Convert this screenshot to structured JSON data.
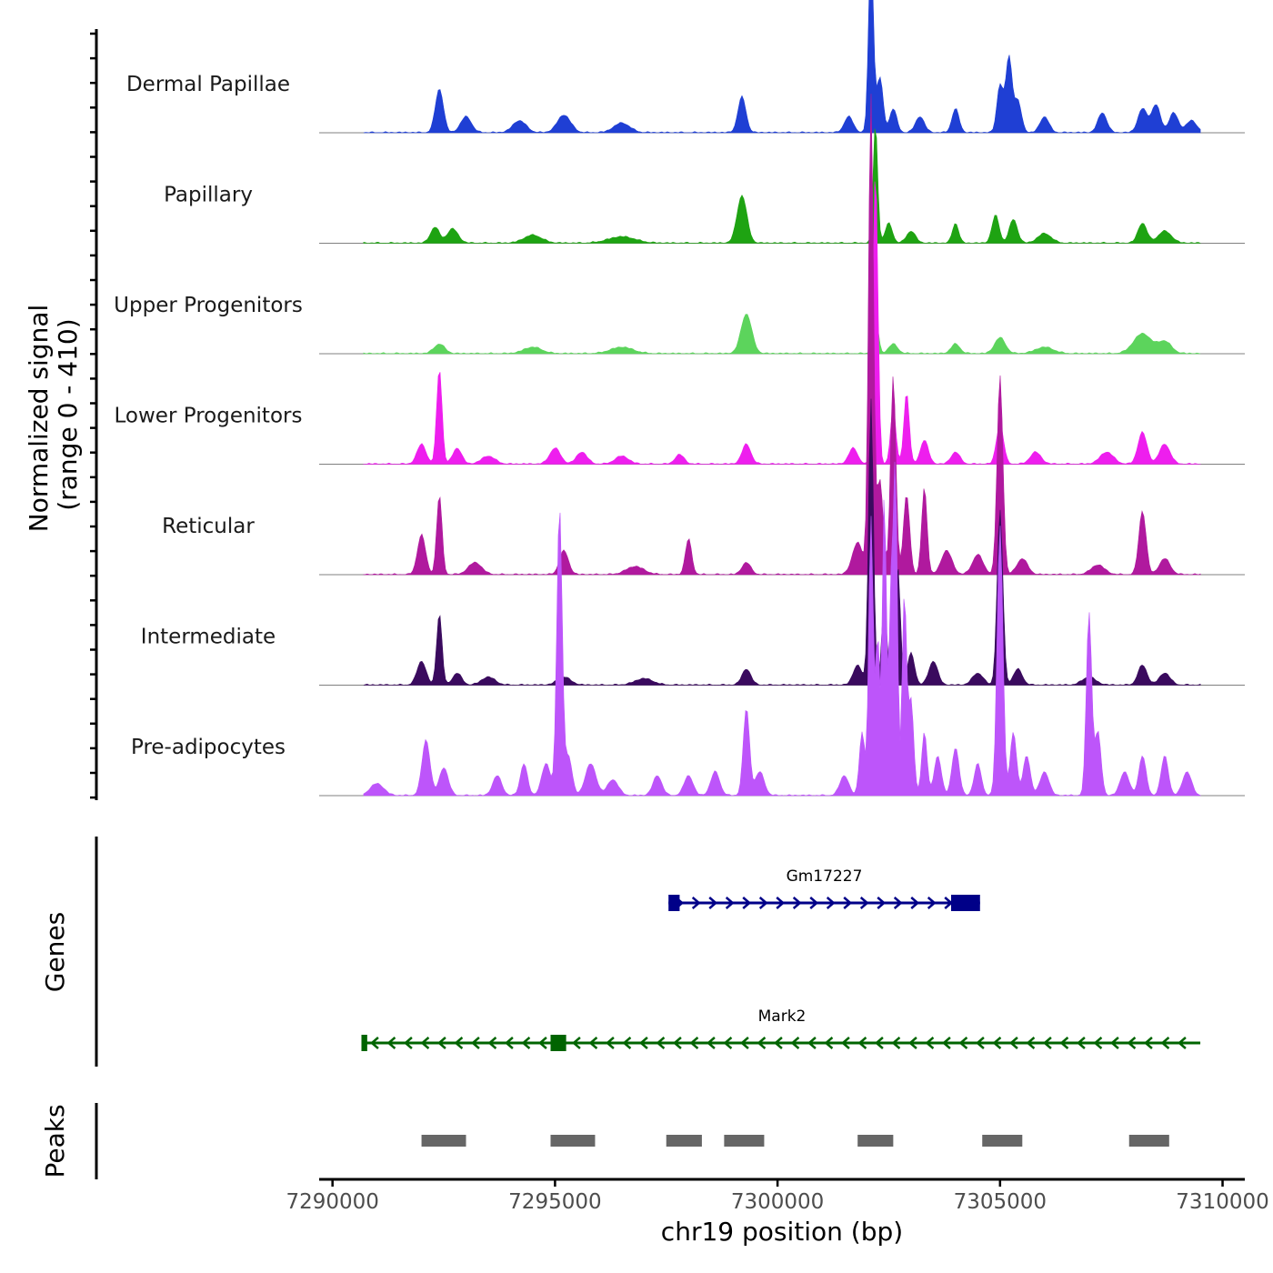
{
  "chart_data": {
    "type": "area",
    "ylabel_line1": "Normalized signal",
    "ylabel_line2": "(range 0 - 410)",
    "xlabel": "chr19 position (bp)",
    "xlim": [
      7289700,
      7310500
    ],
    "ylim": [
      0,
      410
    ],
    "x_ticks": [
      7290000,
      7295000,
      7300000,
      7305000,
      7310000
    ],
    "x_tick_labels": [
      "7290000",
      "7295000",
      "7300000",
      "7305000",
      "7310000"
    ],
    "track_range": [
      7290700,
      7309500
    ],
    "tracks": [
      {
        "name": "Dermal Papillae",
        "color": "#1f3fd4",
        "peaks": [
          [
            7292400,
            55,
            90
          ],
          [
            7293000,
            20,
            120
          ],
          [
            7294200,
            15,
            150
          ],
          [
            7295200,
            22,
            150
          ],
          [
            7296500,
            12,
            180
          ],
          [
            7299200,
            45,
            90
          ],
          [
            7301600,
            20,
            100
          ],
          [
            7302100,
            230,
            55
          ],
          [
            7302300,
            70,
            70
          ],
          [
            7302600,
            30,
            80
          ],
          [
            7303200,
            20,
            100
          ],
          [
            7304000,
            30,
            80
          ],
          [
            7305000,
            60,
            70
          ],
          [
            7305200,
            95,
            70
          ],
          [
            7305400,
            40,
            80
          ],
          [
            7306000,
            20,
            100
          ],
          [
            7307300,
            25,
            100
          ],
          [
            7308200,
            30,
            100
          ],
          [
            7308500,
            35,
            100
          ],
          [
            7308900,
            25,
            100
          ],
          [
            7309300,
            15,
            120
          ]
        ]
      },
      {
        "name": "Papillary",
        "color": "#1ea312",
        "peaks": [
          [
            7292300,
            20,
            100
          ],
          [
            7292700,
            18,
            120
          ],
          [
            7294500,
            10,
            200
          ],
          [
            7296500,
            8,
            300
          ],
          [
            7299200,
            60,
            110
          ],
          [
            7302200,
            150,
            50
          ],
          [
            7302500,
            25,
            80
          ],
          [
            7303000,
            15,
            100
          ],
          [
            7304000,
            25,
            70
          ],
          [
            7304900,
            35,
            80
          ],
          [
            7305300,
            30,
            90
          ],
          [
            7306000,
            12,
            150
          ],
          [
            7308200,
            25,
            100
          ],
          [
            7308700,
            15,
            150
          ]
        ]
      },
      {
        "name": "Upper Progenitors",
        "color": "#5cd45c",
        "peaks": [
          [
            7292400,
            12,
            120
          ],
          [
            7294500,
            8,
            200
          ],
          [
            7296500,
            8,
            250
          ],
          [
            7299300,
            50,
            120
          ],
          [
            7302200,
            50,
            60
          ],
          [
            7302600,
            12,
            100
          ],
          [
            7304000,
            12,
            100
          ],
          [
            7305000,
            20,
            120
          ],
          [
            7306000,
            8,
            200
          ],
          [
            7308200,
            25,
            200
          ],
          [
            7308700,
            15,
            150
          ]
        ]
      },
      {
        "name": "Lower Progenitors",
        "color": "#ee1eee",
        "peaks": [
          [
            7292000,
            25,
            100
          ],
          [
            7292400,
            120,
            60
          ],
          [
            7292800,
            20,
            100
          ],
          [
            7293500,
            10,
            150
          ],
          [
            7295000,
            20,
            120
          ],
          [
            7295600,
            15,
            120
          ],
          [
            7296500,
            10,
            150
          ],
          [
            7297800,
            12,
            100
          ],
          [
            7299300,
            25,
            100
          ],
          [
            7301700,
            20,
            100
          ],
          [
            7302200,
            370,
            55
          ],
          [
            7302600,
            70,
            60
          ],
          [
            7302900,
            90,
            60
          ],
          [
            7303300,
            30,
            90
          ],
          [
            7304000,
            15,
            100
          ],
          [
            7305000,
            50,
            80
          ],
          [
            7305800,
            15,
            120
          ],
          [
            7307400,
            15,
            150
          ],
          [
            7308200,
            40,
            100
          ],
          [
            7308700,
            25,
            120
          ]
        ]
      },
      {
        "name": "Reticular",
        "color": "#b0199e",
        "peaks": [
          [
            7292000,
            50,
            90
          ],
          [
            7292400,
            100,
            60
          ],
          [
            7293200,
            15,
            150
          ],
          [
            7295200,
            30,
            100
          ],
          [
            7296800,
            10,
            200
          ],
          [
            7298000,
            45,
            70
          ],
          [
            7299300,
            15,
            100
          ],
          [
            7301800,
            40,
            120
          ],
          [
            7302100,
            600,
            55
          ],
          [
            7302300,
            120,
            70
          ],
          [
            7302600,
            250,
            60
          ],
          [
            7302900,
            100,
            70
          ],
          [
            7303300,
            110,
            60
          ],
          [
            7303800,
            30,
            120
          ],
          [
            7304500,
            25,
            120
          ],
          [
            7305000,
            250,
            65
          ],
          [
            7305500,
            20,
            120
          ],
          [
            7307200,
            12,
            150
          ],
          [
            7308200,
            80,
            80
          ],
          [
            7308700,
            20,
            120
          ]
        ]
      },
      {
        "name": "Intermediate",
        "color": "#3a0a5e",
        "peaks": [
          [
            7292000,
            30,
            100
          ],
          [
            7292400,
            90,
            60
          ],
          [
            7292800,
            15,
            100
          ],
          [
            7293500,
            10,
            150
          ],
          [
            7295200,
            10,
            150
          ],
          [
            7297000,
            8,
            200
          ],
          [
            7299300,
            20,
            100
          ],
          [
            7301800,
            25,
            100
          ],
          [
            7302100,
            360,
            55
          ],
          [
            7302400,
            100,
            60
          ],
          [
            7302700,
            150,
            60
          ],
          [
            7303000,
            40,
            80
          ],
          [
            7303500,
            30,
            100
          ],
          [
            7304500,
            15,
            120
          ],
          [
            7305000,
            220,
            65
          ],
          [
            7305400,
            20,
            100
          ],
          [
            7307000,
            10,
            150
          ],
          [
            7308200,
            25,
            100
          ],
          [
            7308700,
            15,
            120
          ]
        ]
      },
      {
        "name": "Pre-adipocytes",
        "color": "#bd55fa",
        "peaks": [
          [
            7291000,
            15,
            150
          ],
          [
            7292100,
            70,
            90
          ],
          [
            7292500,
            35,
            100
          ],
          [
            7293700,
            25,
            100
          ],
          [
            7294300,
            40,
            80
          ],
          [
            7294800,
            40,
            100
          ],
          [
            7295100,
            360,
            60
          ],
          [
            7295300,
            50,
            80
          ],
          [
            7295800,
            40,
            120
          ],
          [
            7296300,
            20,
            120
          ],
          [
            7297300,
            25,
            100
          ],
          [
            7298000,
            25,
            100
          ],
          [
            7298600,
            30,
            100
          ],
          [
            7299300,
            110,
            70
          ],
          [
            7299600,
            30,
            100
          ],
          [
            7301500,
            25,
            100
          ],
          [
            7301900,
            80,
            60
          ],
          [
            7302100,
            350,
            50
          ],
          [
            7302250,
            200,
            45
          ],
          [
            7302400,
            380,
            45
          ],
          [
            7302550,
            250,
            45
          ],
          [
            7302650,
            400,
            45
          ],
          [
            7302850,
            250,
            50
          ],
          [
            7303000,
            120,
            60
          ],
          [
            7303300,
            80,
            60
          ],
          [
            7303600,
            50,
            80
          ],
          [
            7304000,
            60,
            80
          ],
          [
            7304500,
            40,
            80
          ],
          [
            7305000,
            340,
            65
          ],
          [
            7305300,
            80,
            70
          ],
          [
            7305600,
            50,
            80
          ],
          [
            7306000,
            30,
            100
          ],
          [
            7307000,
            230,
            60
          ],
          [
            7307200,
            80,
            70
          ],
          [
            7307800,
            30,
            100
          ],
          [
            7308200,
            50,
            80
          ],
          [
            7308700,
            50,
            80
          ],
          [
            7309200,
            30,
            100
          ]
        ]
      }
    ],
    "genes": [
      {
        "name": "Gm17227",
        "color": "#000088",
        "strand": "+",
        "start": 7297550,
        "end": 7304550,
        "exons": [
          [
            7297550,
            7297800
          ],
          [
            7303900,
            7304550
          ]
        ]
      },
      {
        "name": "Mark2",
        "color": "#006400",
        "strand": "-",
        "start": 7290700,
        "end": 7309500,
        "exons": [
          [
            7290650,
            7290780
          ],
          [
            7294900,
            7295250
          ]
        ]
      }
    ],
    "genes_label": "Genes",
    "peaks_label": "Peaks",
    "peak_regions": [
      [
        7292000,
        7293000
      ],
      [
        7294900,
        7295900
      ],
      [
        7297500,
        7298300
      ],
      [
        7298800,
        7299700
      ],
      [
        7301800,
        7302600
      ],
      [
        7304600,
        7305500
      ],
      [
        7307900,
        7308800
      ]
    ]
  }
}
